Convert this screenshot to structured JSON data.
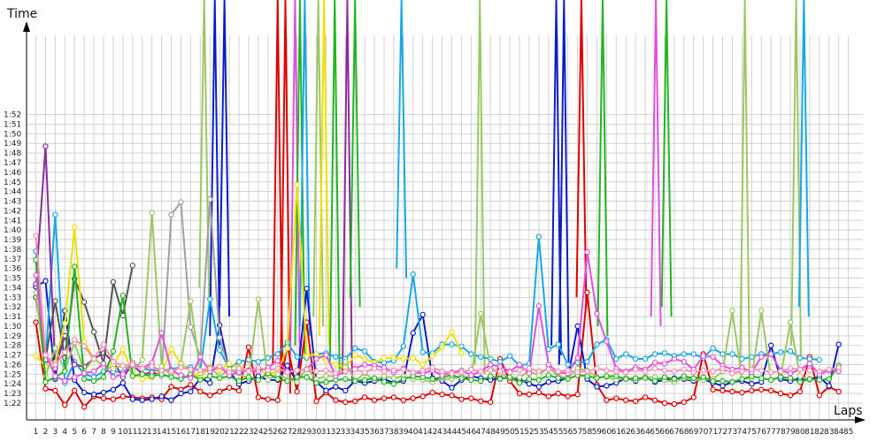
{
  "chart_data": {
    "type": "line",
    "ylabel": "Time",
    "xlabel": "Laps",
    "grid": true,
    "legend": "none",
    "ylim": [
      "1:21",
      "1:53"
    ],
    "xlim": [
      1,
      85
    ],
    "x_ticks": [
      "1",
      "2",
      "3",
      "4",
      "5",
      "6",
      "7",
      "8",
      "9",
      "10",
      "11",
      "12",
      "13",
      "14",
      "15",
      "16",
      "17",
      "18",
      "19",
      "20",
      "21",
      "22",
      "23",
      "24",
      "25",
      "26",
      "27",
      "28",
      "29",
      "30",
      "31",
      "32",
      "33",
      "34",
      "35",
      "36",
      "37",
      "38",
      "39",
      "40",
      "41",
      "42",
      "43",
      "44",
      "45",
      "46",
      "47",
      "48",
      "49",
      "50",
      "51",
      "52",
      "53",
      "54",
      "55",
      "56",
      "57",
      "58",
      "59",
      "60",
      "61",
      "62",
      "63",
      "64",
      "65",
      "66",
      "67",
      "68",
      "69",
      "70",
      "71",
      "72",
      "73",
      "74",
      "75",
      "76",
      "77",
      "78",
      "79",
      "80",
      "81",
      "82",
      "83",
      "84",
      "85"
    ],
    "y_ticks": [
      "1:22",
      "1:23",
      "1:24",
      "1:25",
      "1:26",
      "1:27",
      "1:28",
      "1:29",
      "1:30",
      "1:31",
      "1:32",
      "1:33",
      "1:34",
      "1:35",
      "1:36",
      "1:37",
      "1:38",
      "1:39",
      "1:40",
      "1:41",
      "1:42",
      "1:43",
      "1:44",
      "1:45",
      "1:46",
      "1:47",
      "1:48",
      "1:49",
      "1:50",
      "1:51",
      "1:52"
    ],
    "series": [
      {
        "color": "#e00000",
        "start": 1,
        "values": [
          90.4,
          83.5,
          83.3,
          81.8,
          83.3,
          81.6,
          82.7,
          82.5,
          82.4,
          82.7,
          82.6,
          82.5,
          82.6,
          82.4,
          83.7,
          83.4,
          83.9,
          83.2,
          82.8,
          83.2,
          83.6,
          83.3,
          87.8,
          82.6,
          82.4,
          82.3,
          88.0,
          83.2,
          90.4,
          82.2,
          83.1,
          82.3,
          82.1,
          82.2,
          82.6,
          82.3,
          82.5,
          82.6,
          82.3,
          82.5,
          82.7,
          83.1,
          82.9,
          82.8,
          82.4,
          82.5,
          82.2,
          82.1,
          86.6,
          84.3,
          83.0,
          82.9,
          83.1,
          82.7,
          83.0,
          82.7,
          82.9,
          93.5,
          83.9,
          82.3,
          82.5,
          82.3,
          82.2,
          82.6,
          82.3,
          82.0,
          81.9,
          82.1,
          82.6,
          87.1,
          83.4,
          83.3,
          83.2,
          83.1,
          83.3,
          83.4,
          83.3,
          83.0,
          82.8,
          83.2,
          86.8,
          82.8,
          83.7,
          83.2
        ]
      },
      {
        "color": "#0a1ec8",
        "start": 1,
        "values": [
          94.1,
          94.7,
          84.5,
          91.6,
          84.4,
          83.1,
          82.9,
          83.1,
          83.4,
          84.1,
          82.4,
          82.3,
          82.4,
          82.7,
          82.3,
          83.0,
          83.2,
          84.6,
          84.1,
          90.1,
          85.3,
          84.0,
          84.3,
          84.8,
          84.4,
          84.4,
          85.9,
          84.2,
          93.9,
          84.2,
          83.3,
          83.7,
          83.3,
          84.3,
          84.1,
          84.3,
          84.5,
          84.1,
          84.3,
          89.3,
          91.2,
          84.6,
          84.3,
          83.6,
          84.4,
          84.8,
          84.6,
          84.4,
          84.6,
          84.6,
          84.5,
          84.0,
          83.7,
          84.2,
          84.3,
          84.6,
          90.0,
          84.5,
          83.7,
          83.8,
          84.1,
          84.6,
          84.3,
          84.7,
          84.2,
          84.4,
          84.6,
          84.5,
          84.3,
          84.5,
          84.1,
          83.8,
          84.2,
          84.3,
          84.0,
          84.2,
          88.0,
          84.5,
          84.3,
          84.6,
          84.5,
          84.7,
          83.8,
          88.1
        ]
      },
      {
        "color": "#18a8e8",
        "start": 1,
        "values": [
          97.8,
          86.3,
          101.6,
          84.1,
          86.3,
          85.0,
          84.7,
          85.3,
          85.3,
          85.2,
          86.1,
          85.6,
          85.4,
          85.4,
          85.5,
          85.8,
          85.7,
          85.4,
          92.8,
          87.5,
          85.6,
          86.3,
          86.5,
          86.3,
          86.7,
          87.1,
          88.3,
          86.8,
          86.7,
          87.1,
          87.2,
          86.8,
          86.6,
          87.7,
          87.4,
          86.3,
          86.2,
          86.4,
          87.9,
          95.4,
          87.3,
          87.2,
          88.1,
          88.1,
          87.9,
          87.1,
          86.8,
          86.6,
          86.3,
          86.9,
          85.9,
          86.1,
          99.3,
          87.6,
          88.1,
          86.0,
          86.2,
          86.3,
          88.1,
          88.6,
          86.6,
          87.1,
          86.6,
          86.6,
          87.1,
          87.2,
          86.9,
          87.1,
          87.1,
          86.7,
          87.7,
          87.1,
          87.1,
          86.6,
          86.8,
          87.1,
          87.1,
          87.3,
          87.4,
          86.7,
          86.6,
          86.5
        ]
      },
      {
        "color": "#8a2c9c",
        "start": 1,
        "values": [
          94.4,
          108.7,
          85.6,
          89.0,
          86.0,
          85.8,
          86.6,
          87.2,
          86.3,
          84.7,
          86.0,
          85.0,
          85.2,
          84.9
        ]
      },
      {
        "color": "#555555",
        "start": 1,
        "values": [
          93.0,
          86.5,
          92.6,
          86.7,
          94.9,
          92.5,
          89.4,
          86.1,
          94.6,
          91.1,
          96.3
        ]
      },
      {
        "color": "#a0a0a0",
        "start": 13,
        "values": [
          86.1,
          84.8,
          101.6,
          102.9,
          89.9,
          86.7,
          103.2,
          88.8,
          85.4,
          85.2
        ]
      },
      {
        "color": "#f0e000",
        "start": 1,
        "values": [
          86.9,
          85.8,
          86.2,
          90.3,
          100.3,
          88.4,
          86.6,
          85.9,
          86.0,
          87.6,
          85.1,
          84.5,
          84.7,
          85.2,
          87.6,
          86.1,
          85.3,
          84.6,
          85.8,
          85.4,
          86.1,
          85.7,
          85.4,
          85.4,
          85.0,
          85.3,
          87.7,
          104.7,
          86.9,
          87.1,
          86.4,
          86.0,
          85.7,
          87.0,
          86.6,
          86.2,
          86.7,
          86.7,
          86.6,
          86.7,
          86.0,
          86.9,
          87.8,
          89.4,
          87.2
        ]
      },
      {
        "color": "#9cc864",
        "start": 1,
        "values": [
          93.5,
          84.8,
          87.7,
          85.4,
          88.3,
          85.3,
          86.7,
          85.8,
          85.6,
          85.9,
          85.4,
          86.5,
          101.8,
          85.8,
          84.9,
          86.1,
          92.6,
          85.1,
          85.7,
          84.8,
          85.5,
          85.1,
          84.5,
          92.8,
          84.4,
          85.0,
          84.5,
          84.2,
          85.6,
          84.5,
          84.8,
          84.8,
          86.3,
          84.3,
          85.1,
          84.4,
          84.8,
          84.6,
          84.8,
          84.5,
          84.4,
          84.2,
          84.5,
          84.5,
          84.8,
          84.7,
          91.3,
          85.7,
          85.1,
          84.6,
          84.7,
          85.3,
          84.9,
          85.7,
          84.8,
          84.6,
          85.6,
          85.4,
          84.7,
          84.7,
          84.4,
          84.6,
          84.4,
          84.7,
          84.7,
          84.4,
          84.2,
          84.6,
          84.4,
          84.4,
          84.5,
          85.3,
          91.6,
          84.5,
          84.6,
          91.6,
          84.4,
          84.8,
          90.4,
          84.8,
          84.4
        ]
      },
      {
        "color": "#22b422",
        "start": 1,
        "values": [
          96.9,
          84.2,
          84.7,
          85.3,
          96.2,
          84.5,
          84.3,
          84.7,
          87.4,
          93.2,
          84.8,
          85.0,
          84.8,
          85.0,
          84.7,
          84.5,
          85.0,
          84.4,
          84.8,
          84.6,
          84.8,
          84.3,
          84.7,
          84.4,
          85.1,
          84.5,
          84.3,
          84.7,
          84.7,
          84.1,
          84.2,
          84.4,
          84.5,
          84.3,
          84.4,
          84.6,
          84.2,
          84.0,
          84.5,
          84.8,
          84.7,
          84.5,
          84.7,
          84.9,
          84.6,
          84.4,
          84.3,
          84.8,
          84.5,
          84.7,
          84.1,
          84.5,
          84.4,
          84.9,
          84.6,
          84.5,
          84.9,
          84.8,
          84.6,
          84.8,
          84.8,
          84.5,
          84.6,
          84.6,
          84.3,
          84.7,
          84.5,
          84.8,
          84.6,
          84.7,
          84.3,
          84.3,
          84.2,
          84.5,
          84.8,
          84.6,
          84.4,
          84.7,
          84.6,
          84.2,
          84.5,
          84.4,
          84.5,
          85.9
        ]
      },
      {
        "color": "#e050e0",
        "start": 1,
        "values": [
          95.3,
          87.1,
          84.8,
          84.3,
          84.7,
          85.1,
          85.3,
          86.1,
          84.7,
          85.0,
          86.2,
          85.6,
          86.2,
          89.3,
          85.4,
          84.9,
          84.6,
          86.8,
          85.3,
          85.8,
          84.9,
          85.2,
          85.4,
          85.3,
          85.7,
          86.4,
          85.2,
          85.4,
          85.5,
          86.6,
          87.0,
          84.8,
          85.3,
          85.6,
          86.0,
          85.9,
          85.7,
          85.2,
          85.6,
          85.2,
          85.1,
          85.4,
          84.9,
          85.2,
          85.4,
          84.9,
          85.3,
          86.0,
          85.8,
          85.3,
          86.0,
          85.1,
          92.1,
          86.0,
          85.2,
          85.1,
          86.7,
          97.7,
          91.3,
          88.4,
          85.6,
          85.3,
          85.7,
          85.5,
          86.2,
          86.1,
          86.6,
          86.3,
          85.5,
          86.9,
          86.8,
          85.9,
          85.5,
          85.7,
          85.2,
          86.8,
          87.1,
          85.4,
          85.1,
          85.5,
          86.1,
          85.0,
          85.4,
          85.3
        ]
      },
      {
        "color": "#ff88b4",
        "start": 1,
        "values": [
          99.4,
          87.0,
          86.0,
          87.3,
          88.6,
          87.9,
          86.6,
          88.1,
          86.3,
          85.9,
          86.0,
          85.6,
          85.8,
          85.4,
          85.3,
          85.7,
          85.5,
          85.4,
          85.6,
          85.8,
          85.2,
          85.6,
          85.3,
          85.7,
          85.4,
          85.6,
          85.2,
          85.4,
          85.5,
          85.3,
          85.4,
          85.1,
          85.3,
          85.5,
          85.2,
          85.6,
          85.3,
          85.4,
          85.5,
          85.2,
          85.4,
          85.7,
          85.3,
          85.1,
          85.2,
          85.5,
          85.3,
          85.4,
          85.3,
          85.2,
          85.4,
          85.6,
          85.3,
          85.5,
          85.3,
          85.4,
          85.2,
          85.3,
          85.6,
          85.4,
          85.3,
          85.2,
          85.5,
          85.3,
          85.6,
          85.4,
          85.3,
          85.5,
          85.2,
          85.4,
          85.3,
          85.6,
          85.1,
          85.3,
          85.5,
          85.4,
          85.2,
          85.3,
          85.6,
          85.5,
          85.4,
          85.3,
          85.5,
          85.7
        ]
      }
    ],
    "spikes": [
      {
        "color": "#9cc864",
        "lap": 18.4,
        "base": 94
      },
      {
        "color": "#0a1ec8",
        "lap": 19.5,
        "base": 89
      },
      {
        "color": "#0a1ec8",
        "lap": 20.5,
        "base": 92
      },
      {
        "color": "#e00000",
        "lap": 26.0,
        "base": 86
      },
      {
        "color": "#e00000",
        "lap": 26.8,
        "base": 84
      },
      {
        "color": "#e050e0",
        "lap": 27.8,
        "base": 87
      },
      {
        "color": "#22b422",
        "lap": 28.3,
        "base": 88
      },
      {
        "color": "#18a8e8",
        "lap": 28.8,
        "base": 90
      },
      {
        "color": "#9cc864",
        "lap": 30.2,
        "base": 91
      },
      {
        "color": "#f0e000",
        "lap": 30.8,
        "base": 89
      },
      {
        "color": "#22b422",
        "lap": 31.9,
        "base": 86
      },
      {
        "color": "#8a2c9c",
        "lap": 33.2,
        "base": 85
      },
      {
        "color": "#22b422",
        "lap": 34.0,
        "base": 93
      },
      {
        "color": "#18a8e8",
        "lap": 38.8,
        "base": 96
      },
      {
        "color": "#9cc864",
        "lap": 46.9,
        "base": 86
      },
      {
        "color": "#0a1ec8",
        "lap": 54.8,
        "base": 88
      },
      {
        "color": "#0a1ec8",
        "lap": 55.6,
        "base": 86
      },
      {
        "color": "#e00000",
        "lap": 57.4,
        "base": 93
      },
      {
        "color": "#22b422",
        "lap": 59.6,
        "base": 90
      },
      {
        "color": "#e050e0",
        "lap": 65.1,
        "base": 91
      },
      {
        "color": "#22b422",
        "lap": 66.2,
        "base": 92
      },
      {
        "color": "#9cc864",
        "lap": 74.3,
        "base": 85
      },
      {
        "color": "#9cc864",
        "lap": 79.6,
        "base": 88
      },
      {
        "color": "#18a8e8",
        "lap": 80.4,
        "base": 92
      }
    ]
  }
}
